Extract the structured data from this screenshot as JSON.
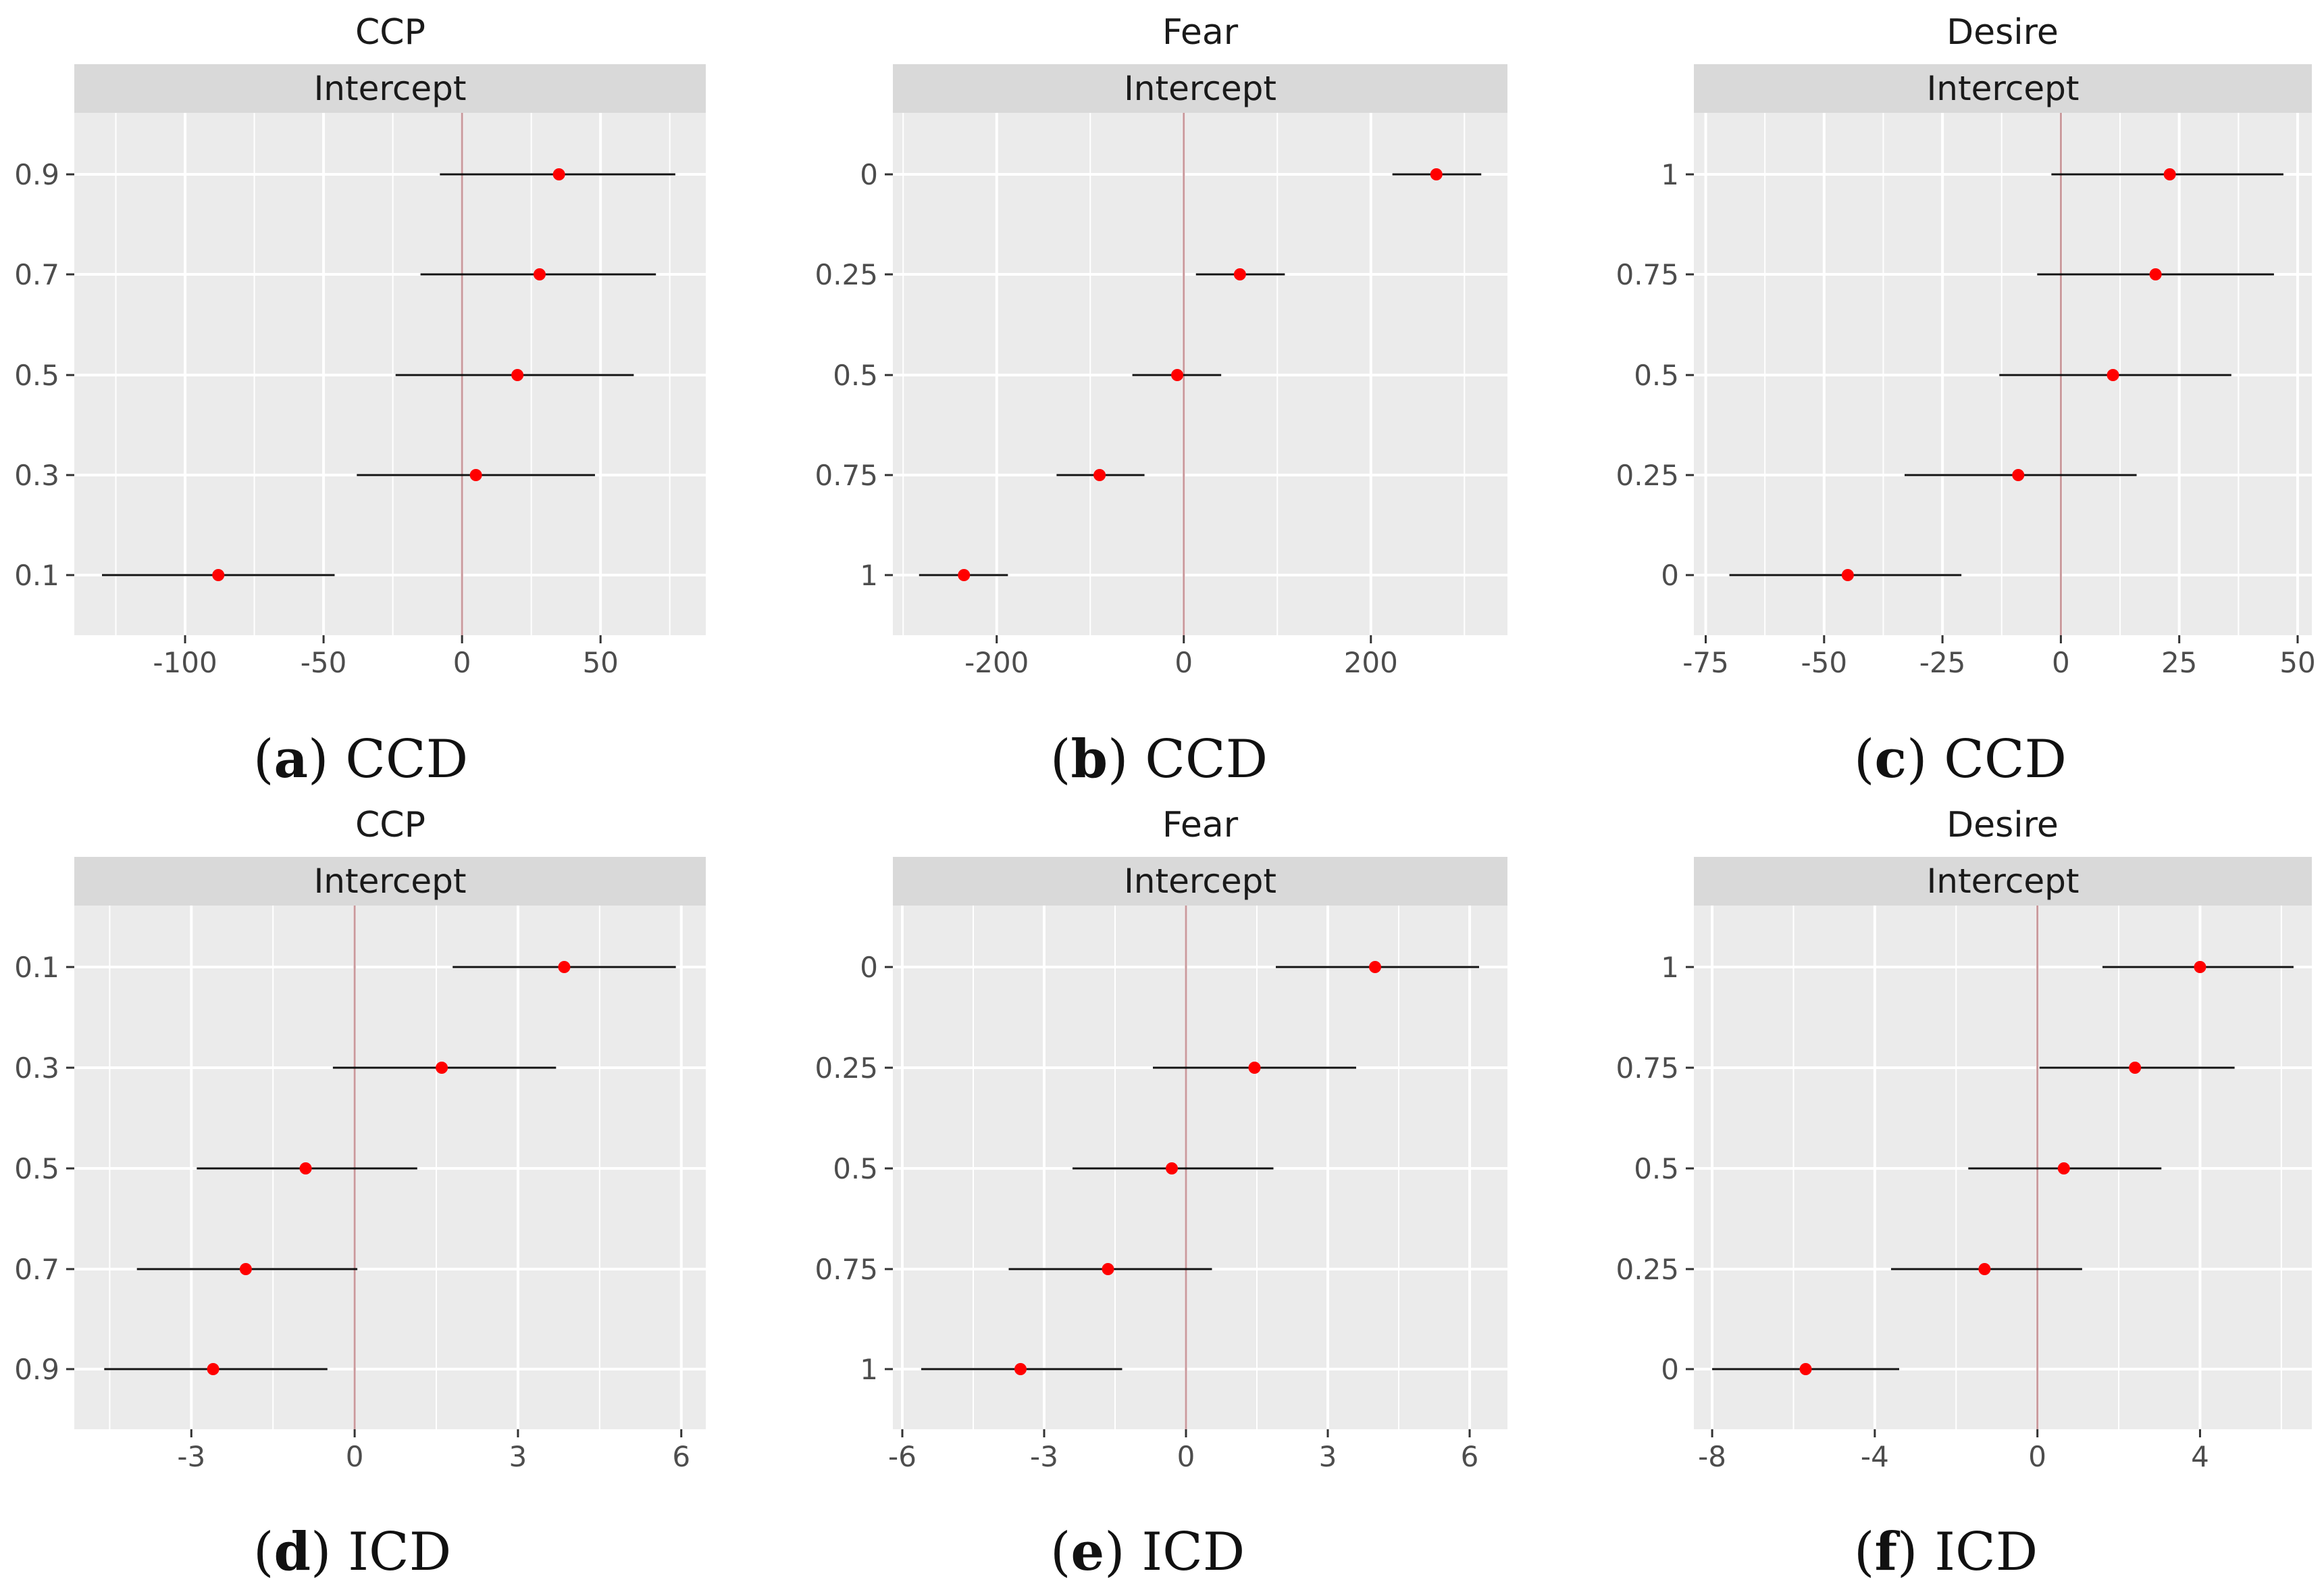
{
  "chart_data": [
    {
      "type": "scatter",
      "subtype": "forest-plot",
      "title": "CCP",
      "strip_label": "Intercept",
      "caption_letter": "a",
      "caption_text": "CCD",
      "xlim": [
        -140,
        88
      ],
      "xticks": [
        -100,
        -50,
        0,
        50
      ],
      "xtick_labels": [
        "-100",
        "-50",
        "0",
        "50"
      ],
      "categories": [
        "0.9",
        "0.7",
        "0.5",
        "0.3",
        "0.1"
      ],
      "estimates": [
        35,
        28,
        20,
        5,
        -88
      ],
      "ci_low": [
        -8,
        -15,
        -24,
        -38,
        -130
      ],
      "ci_high": [
        77,
        70,
        62,
        48,
        -46
      ],
      "reference_line": 0
    },
    {
      "type": "scatter",
      "subtype": "forest-plot",
      "title": "Fear",
      "strip_label": "Intercept",
      "caption_letter": "b",
      "caption_text": "CCD",
      "xlim": [
        -311,
        346
      ],
      "xticks": [
        -200,
        0,
        200
      ],
      "xtick_labels": [
        "-200",
        "0",
        "200"
      ],
      "categories": [
        "0",
        "0.25",
        "0.5",
        "0.75",
        "1"
      ],
      "estimates": [
        270,
        60,
        -7,
        -90,
        -235
      ],
      "ci_low": [
        223,
        13,
        -55,
        -136,
        -283
      ],
      "ci_high": [
        318,
        108,
        40,
        -42,
        -188
      ],
      "reference_line": 0
    },
    {
      "type": "scatter",
      "subtype": "forest-plot",
      "title": "Desire",
      "strip_label": "Intercept",
      "caption_letter": "c",
      "caption_text": "CCD",
      "xlim": [
        -77.5,
        53
      ],
      "xticks": [
        -75,
        -50,
        -25,
        0,
        25,
        50
      ],
      "xtick_labels": [
        "-75",
        "-50",
        "-25",
        "0",
        "25",
        "50"
      ],
      "categories": [
        "1",
        "0.75",
        "0.5",
        "0.25",
        "0"
      ],
      "estimates": [
        23,
        20,
        11,
        -9,
        -45
      ],
      "ci_low": [
        -2,
        -5,
        -13,
        -33,
        -70
      ],
      "ci_high": [
        47,
        45,
        36,
        16,
        -21
      ],
      "reference_line": 0
    },
    {
      "type": "scatter",
      "subtype": "forest-plot",
      "title": "CCP",
      "strip_label": "Intercept",
      "caption_letter": "d",
      "caption_text": "ICD",
      "xlim": [
        -5.15,
        6.45
      ],
      "xticks": [
        -3,
        0,
        3,
        6
      ],
      "xtick_labels": [
        "-3",
        "0",
        "3",
        "6"
      ],
      "categories": [
        "0.1",
        "0.3",
        "0.5",
        "0.7",
        "0.9"
      ],
      "estimates": [
        3.85,
        1.6,
        -0.9,
        -2.0,
        -2.6
      ],
      "ci_low": [
        1.8,
        -0.4,
        -2.9,
        -4.0,
        -4.6
      ],
      "ci_high": [
        5.9,
        3.7,
        1.15,
        0.05,
        -0.5
      ],
      "reference_line": 0
    },
    {
      "type": "scatter",
      "subtype": "forest-plot",
      "title": "Fear",
      "strip_label": "Intercept",
      "caption_letter": "e",
      "caption_text": "ICD",
      "xlim": [
        -6.2,
        6.8
      ],
      "xticks": [
        -6,
        -3,
        0,
        3,
        6
      ],
      "xtick_labels": [
        "-6",
        "-3",
        "0",
        "3",
        "6"
      ],
      "categories": [
        "0",
        "0.25",
        "0.5",
        "0.75",
        "1"
      ],
      "estimates": [
        4.0,
        1.45,
        -0.3,
        -1.65,
        -3.5
      ],
      "ci_low": [
        1.9,
        -0.7,
        -2.4,
        -3.75,
        -5.6
      ],
      "ci_high": [
        6.2,
        3.6,
        1.85,
        0.55,
        -1.35
      ],
      "reference_line": 0
    },
    {
      "type": "scatter",
      "subtype": "forest-plot",
      "title": "Desire",
      "strip_label": "Intercept",
      "caption_letter": "f",
      "caption_text": "ICD",
      "xlim": [
        -8.45,
        6.75
      ],
      "xticks": [
        -8,
        -4,
        0,
        4
      ],
      "xtick_labels": [
        "-8",
        "-4",
        "0",
        "4"
      ],
      "categories": [
        "1",
        "0.75",
        "0.5",
        "0.25",
        "0"
      ],
      "estimates": [
        4.0,
        2.4,
        0.65,
        -1.3,
        -5.7
      ],
      "ci_low": [
        1.6,
        0.05,
        -1.7,
        -3.6,
        -8.0
      ],
      "ci_high": [
        6.3,
        4.85,
        3.05,
        1.1,
        -3.4
      ],
      "reference_line": 0
    }
  ]
}
